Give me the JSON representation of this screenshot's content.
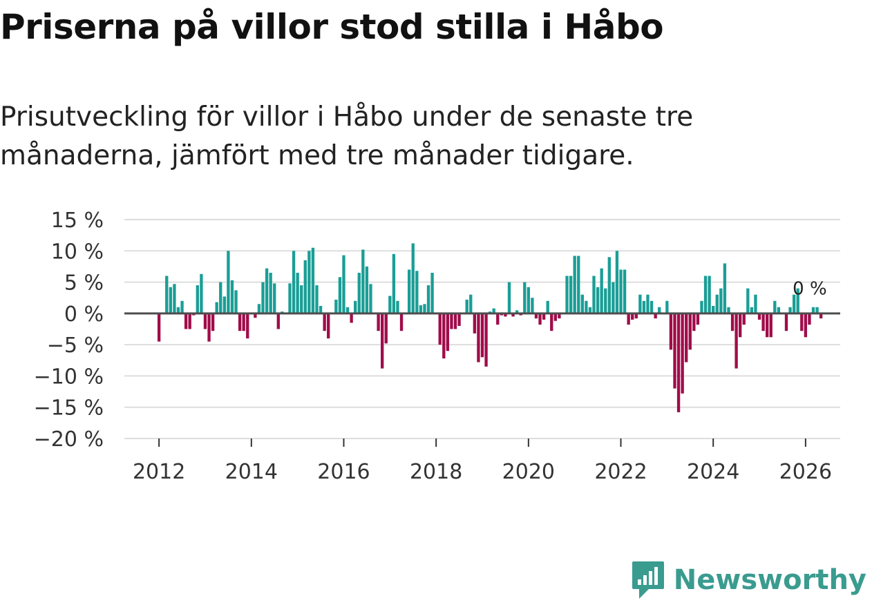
{
  "title": "Priserna på villor stod stilla i Håbo",
  "subtitle": "Prisutveckling för villor i Håbo under de senaste tre månaderna, jämfört med tre månader tidigare.",
  "brand": {
    "name": "Newsworthy"
  },
  "colors": {
    "positive": "#1a9e96",
    "negative": "#a00c4a",
    "zero_line": "#4d4d4d",
    "grid": "#dddddd",
    "brand": "#3a9b8f"
  },
  "chart_data": {
    "type": "bar",
    "title": "Priserna på villor stod stilla i Håbo",
    "ylabel": "",
    "xlabel": "",
    "ylim": [
      -20,
      15
    ],
    "yticks": [
      15,
      10,
      5,
      0,
      -5,
      -10,
      -15,
      -20
    ],
    "ytick_labels": [
      "15 %",
      "10 %",
      "5 %",
      "0 %",
      "−5 %",
      "−10 %",
      "−15 %",
      "−20 %"
    ],
    "xlim": [
      2011.25,
      2026.75
    ],
    "xticks": [
      2012,
      2014,
      2016,
      2018,
      2020,
      2022,
      2024,
      2026
    ],
    "xtick_labels": [
      "2012",
      "2014",
      "2016",
      "2018",
      "2020",
      "2022",
      "2024",
      "2026"
    ],
    "grid": true,
    "start_year": 2012,
    "start_month": 1,
    "values": [
      -4.5,
      0,
      6,
      4.2,
      4.7,
      1,
      2,
      -2.5,
      -2.5,
      -0.3,
      4.5,
      6.3,
      -2.5,
      -4.5,
      -2.8,
      1.8,
      5,
      2.7,
      10,
      5.3,
      3.7,
      -2.8,
      -2.8,
      -4,
      0,
      -0.7,
      1.5,
      5,
      7.2,
      6.5,
      4.8,
      -2.5,
      0.3,
      0,
      4.8,
      10,
      6.5,
      4.5,
      8.5,
      10,
      10.5,
      4.5,
      1.2,
      -2.8,
      -4,
      0,
      2.2,
      5.8,
      9.3,
      1,
      -1.5,
      2,
      6.5,
      10.2,
      7.5,
      4.7,
      0,
      -2.8,
      -8.8,
      -4.8,
      2.8,
      9.5,
      2,
      -2.8,
      0,
      7,
      11.2,
      6.8,
      1.3,
      1.5,
      4.5,
      6.5,
      0,
      -5,
      -7.2,
      -6,
      -2.5,
      -2.5,
      -2,
      0,
      2.2,
      3,
      -3.2,
      -7.8,
      -7,
      -8.5,
      0.3,
      0.8,
      -1.8,
      -0.3,
      -0.5,
      5,
      -0.5,
      0.5,
      -0.3,
      5,
      4.2,
      2.5,
      -0.8,
      -1.8,
      -1,
      2,
      -2.8,
      -1.2,
      -0.8,
      0,
      6,
      6,
      9.2,
      9.2,
      3,
      2,
      1,
      6,
      4.2,
      7.2,
      4,
      9,
      5,
      10,
      7,
      7,
      -1.8,
      -1,
      -0.8,
      3,
      2,
      3,
      2,
      -0.8,
      1,
      0,
      2,
      -5.8,
      -12,
      -15.8,
      -12.8,
      -7.8,
      -5.8,
      -2.8,
      -1.8,
      2,
      6,
      6,
      1.2,
      3,
      4,
      8,
      1,
      -2.8,
      -8.8,
      -3.8,
      -1.8,
      4,
      1,
      3,
      -1,
      -2.8,
      -3.8,
      -3.8,
      2,
      1,
      0,
      -2.8,
      1,
      3,
      4,
      -2.8,
      -3.8,
      -1.8,
      1,
      1,
      -0.8,
      0
    ],
    "annotations": [
      {
        "label": "0 %",
        "year": 2025,
        "month": 10
      }
    ]
  }
}
